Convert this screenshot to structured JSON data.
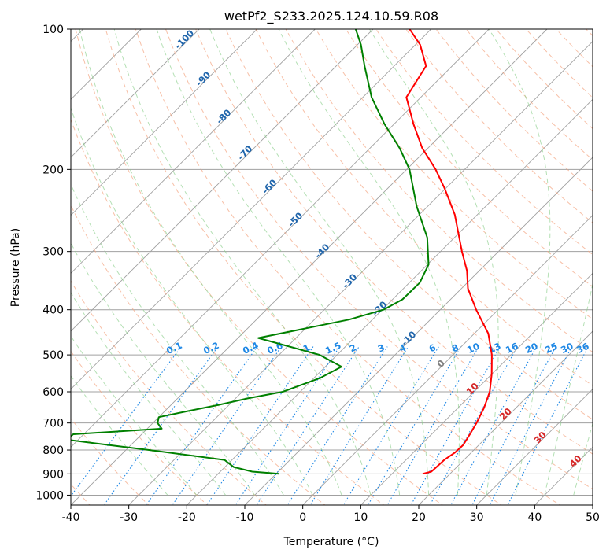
{
  "chart_data": {
    "type": "line",
    "title": "wetPf2_S233.2025.124.10.59.R08",
    "xlabel": "Temperature (°C)",
    "ylabel": "Pressure (hPa)",
    "xlim": [
      -40,
      50
    ],
    "ylim": [
      1050,
      100
    ],
    "yscale": "log",
    "skew": "skew-T log-P",
    "grid": true,
    "xticks": [
      -40,
      -30,
      -20,
      -10,
      0,
      10,
      20,
      30,
      40,
      50
    ],
    "yticks": [
      100,
      200,
      300,
      400,
      500,
      600,
      700,
      800,
      900,
      1000
    ],
    "series": [
      {
        "role": "temperature",
        "color": "#ff0000",
        "points": [
          [
            900,
            15.3
          ],
          [
            890,
            16.4
          ],
          [
            870,
            16.5
          ],
          [
            840,
            16.6
          ],
          [
            810,
            17.2
          ],
          [
            780,
            17.3
          ],
          [
            740,
            16.6
          ],
          [
            700,
            15.8
          ],
          [
            650,
            14.5
          ],
          [
            600,
            12.7
          ],
          [
            550,
            10.0
          ],
          [
            500,
            6.7
          ],
          [
            450,
            2.4
          ],
          [
            400,
            -3.8
          ],
          [
            360,
            -8.9
          ],
          [
            330,
            -12.1
          ],
          [
            300,
            -16.3
          ],
          [
            250,
            -23.9
          ],
          [
            220,
            -30.1
          ],
          [
            200,
            -35.0
          ],
          [
            180,
            -41.0
          ],
          [
            160,
            -46.6
          ],
          [
            140,
            -52.5
          ],
          [
            120,
            -54.5
          ],
          [
            108,
            -59.2
          ],
          [
            100,
            -63.7
          ]
        ]
      },
      {
        "role": "dewpoint",
        "color": "#008000",
        "points": [
          [
            900,
            -9.5
          ],
          [
            890,
            -14.5
          ],
          [
            870,
            -18.5
          ],
          [
            840,
            -21.3
          ],
          [
            800,
            -36.0
          ],
          [
            780,
            -44.0
          ],
          [
            760,
            -52.0
          ],
          [
            740,
            -51.8
          ],
          [
            720,
            -37.5
          ],
          [
            700,
            -39.2
          ],
          [
            680,
            -40.0
          ],
          [
            660,
            -36.0
          ],
          [
            640,
            -31.8
          ],
          [
            620,
            -27.9
          ],
          [
            600,
            -23.0
          ],
          [
            560,
            -18.9
          ],
          [
            530,
            -17.2
          ],
          [
            500,
            -23.0
          ],
          [
            460,
            -36.5
          ],
          [
            420,
            -24.0
          ],
          [
            400,
            -19.8
          ],
          [
            380,
            -18.3
          ],
          [
            350,
            -18.2
          ],
          [
            320,
            -19.8
          ],
          [
            280,
            -24.7
          ],
          [
            240,
            -31.9
          ],
          [
            200,
            -39.5
          ],
          [
            180,
            -44.9
          ],
          [
            160,
            -51.6
          ],
          [
            140,
            -58.5
          ],
          [
            120,
            -65.1
          ],
          [
            108,
            -69.4
          ],
          [
            100,
            -73.0
          ]
        ]
      }
    ],
    "dry_adiabats_c": [
      -100,
      -90,
      -80,
      -70,
      -60,
      -50,
      -40,
      -30,
      -20,
      -10,
      0,
      10,
      20,
      30,
      40
    ],
    "moist_adiabat_labels": [
      "0",
      "10",
      "20",
      "30",
      "40"
    ],
    "mixing_ratio_labels": [
      "0.1",
      "0.2",
      "0.4",
      "0.6",
      "1",
      "1.5",
      "2",
      "3",
      "4",
      "6",
      "8",
      "10",
      "13",
      "16",
      "20",
      "25",
      "30",
      "36"
    ],
    "mixing_ratio_values": [
      0.1,
      0.2,
      0.4,
      0.6,
      1,
      1.5,
      2,
      3,
      4,
      6,
      8,
      10,
      13,
      16,
      20,
      25,
      30,
      36
    ],
    "colors": {
      "isotherm": "#a0a0a0",
      "dry_adiabat": "#f4a582",
      "moist_adiabat": "#8ccf8c",
      "mixing_ratio": "#1f88e5",
      "dry_label": "#2166ac",
      "moist_label": "#d62728"
    }
  }
}
